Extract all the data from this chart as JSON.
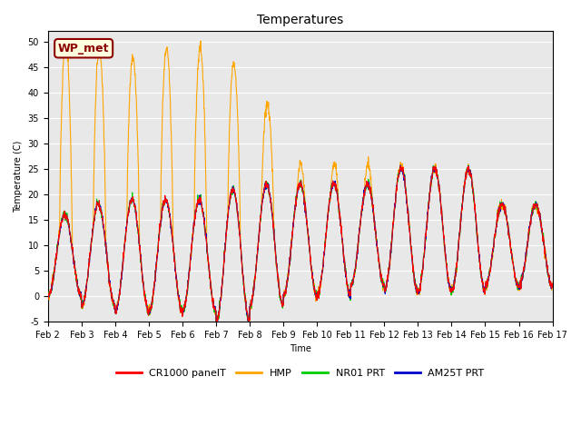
{
  "title": "Temperatures",
  "ylabel": "Temperature (C)",
  "xlabel": "Time",
  "ylim": [
    -5,
    52
  ],
  "yticks": [
    -5,
    0,
    5,
    10,
    15,
    20,
    25,
    30,
    35,
    40,
    45,
    50
  ],
  "xtick_labels": [
    "Feb 2",
    "Feb 3",
    "Feb 4",
    "Feb 5",
    "Feb 6",
    "Feb 7",
    "Feb 8",
    "Feb 9",
    "Feb 10",
    "Feb 11",
    "Feb 12",
    "Feb 13",
    "Feb 14",
    "Feb 15",
    "Feb 16",
    "Feb 17"
  ],
  "annotation_text": "WP_met",
  "annotation_color": "#8B0000",
  "annotation_bg": "#FFFFE0",
  "bg_color": "#E8E8E8",
  "series_colors": [
    "#FF0000",
    "#FFA500",
    "#00CC00",
    "#0000CD"
  ],
  "series_labels": [
    "CR1000 panelT",
    "HMP",
    "NR01 PRT",
    "AM25T PRT"
  ],
  "line_width": 0.8,
  "title_fontsize": 10,
  "axis_fontsize": 7,
  "legend_fontsize": 8,
  "n_days": 15,
  "points_per_day": 144
}
